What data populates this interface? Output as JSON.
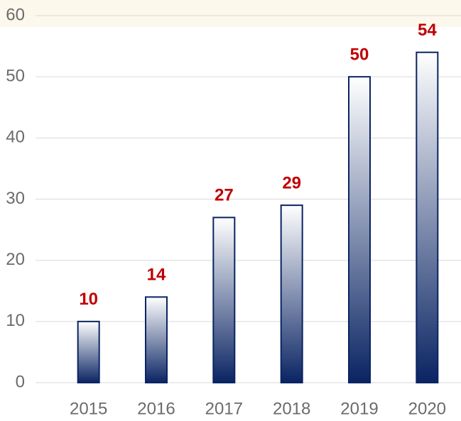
{
  "chart_data": {
    "type": "bar",
    "categories": [
      "2015",
      "2016",
      "2017",
      "2018",
      "2019",
      "2020"
    ],
    "values": [
      10,
      14,
      27,
      29,
      50,
      54
    ],
    "color": "#0a2463",
    "label_color": "#c00000",
    "ylim": [
      0,
      60
    ],
    "yticks": [
      0,
      10,
      20,
      30,
      40,
      50,
      60
    ],
    "grid": true
  }
}
